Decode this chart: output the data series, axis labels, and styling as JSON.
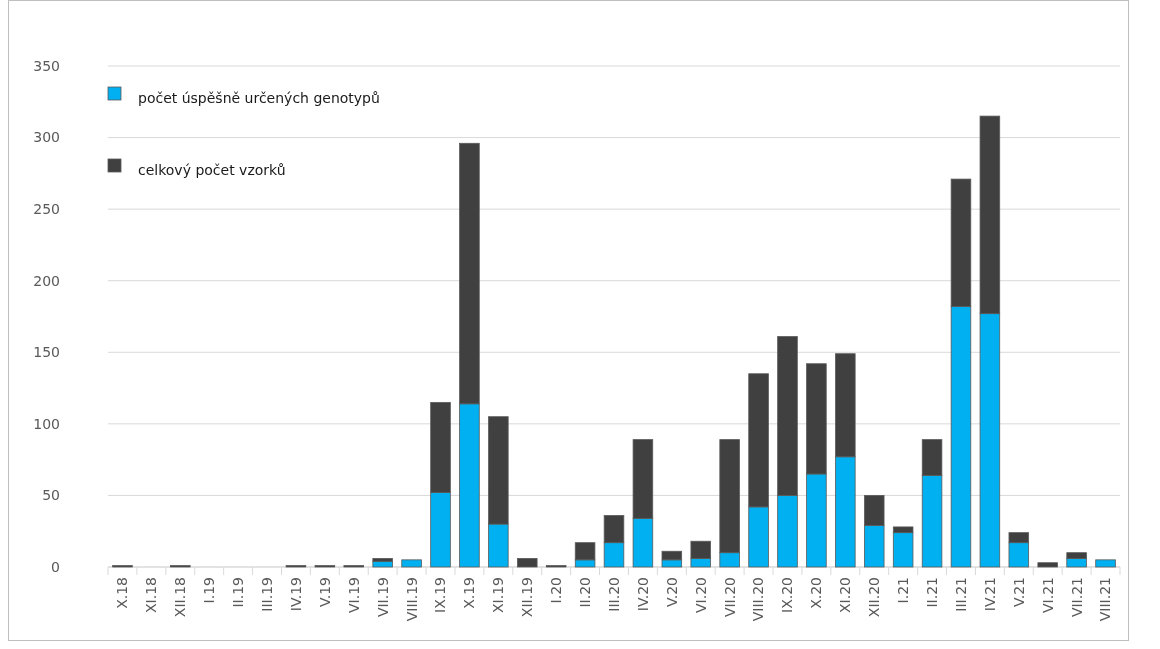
{
  "chart_data": {
    "type": "bar",
    "stacked": true,
    "categories": [
      "X.18",
      "XI.18",
      "XII.18",
      "I.19",
      "II.19",
      "III.19",
      "IV.19",
      "V.19",
      "VI.19",
      "VII.19",
      "VIII.19",
      "IX.19",
      "X.19",
      "XI.19",
      "XII.19",
      "I.20",
      "II.20",
      "III.20",
      "IV.20",
      "V.20",
      "VI.20",
      "VII.20",
      "VIII.20",
      "IX.20",
      "X.20",
      "XI.20",
      "XII.20",
      "I.21",
      "II.21",
      "III.21",
      "IV.21",
      "V.21",
      "VI.21",
      "VII.21",
      "VIII.21"
    ],
    "series": [
      {
        "name": "počet úspěšně určených genotypů",
        "color": "#00b0f0",
        "values": [
          0,
          0,
          0,
          0,
          0,
          0,
          0,
          0,
          0,
          4,
          5,
          52,
          114,
          30,
          0,
          0,
          5,
          17,
          34,
          5,
          6,
          10,
          42,
          50,
          65,
          77,
          29,
          24,
          64,
          182,
          177,
          17,
          0,
          6,
          5
        ]
      },
      {
        "name": "celkový počet vzorků",
        "color": "#404040",
        "values": [
          1,
          0,
          1,
          0,
          0,
          0,
          1,
          1,
          1,
          2,
          0,
          63,
          182,
          75,
          6,
          1,
          12,
          19,
          55,
          6,
          12,
          79,
          93,
          111,
          77,
          72,
          21,
          4,
          25,
          89,
          138,
          7,
          3,
          4,
          0
        ]
      }
    ],
    "ylim": [
      0,
      350
    ],
    "yticks": [
      0,
      50,
      100,
      150,
      200,
      250,
      300,
      350
    ],
    "grid": "y",
    "legend": "top left"
  }
}
